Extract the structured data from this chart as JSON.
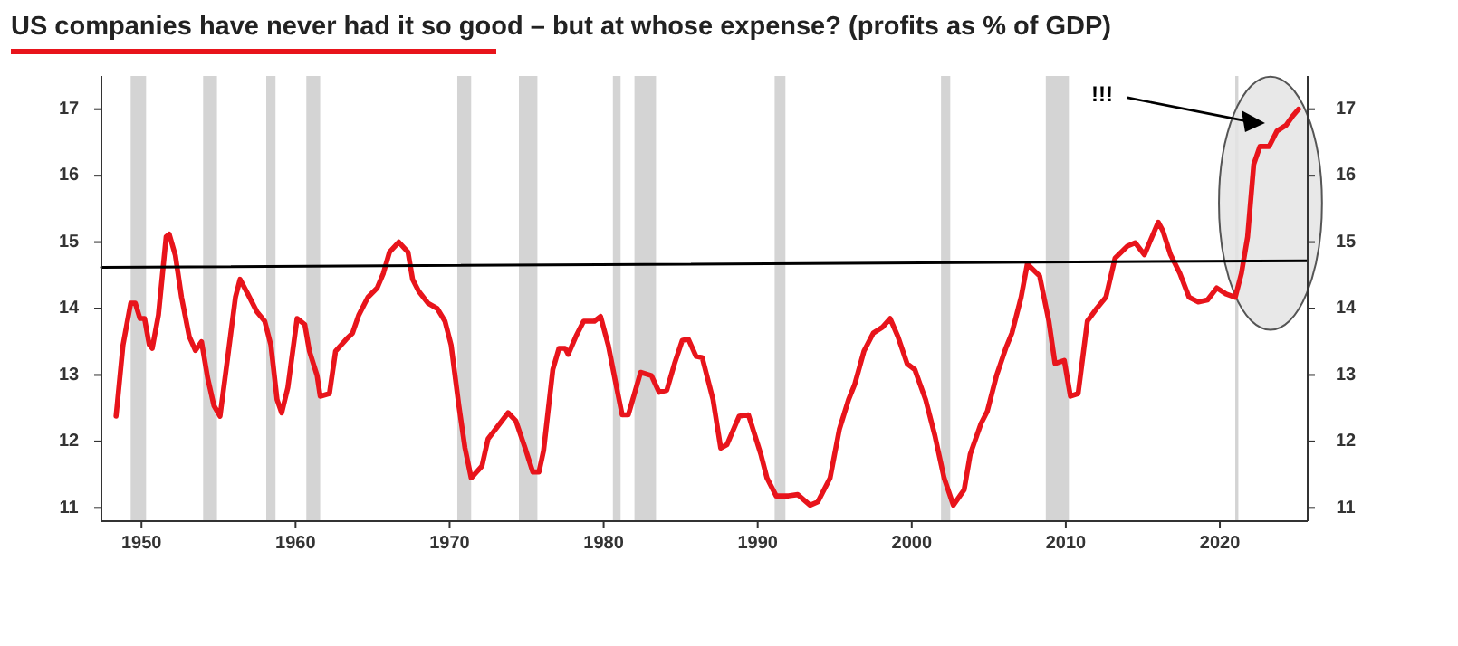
{
  "chart_data": {
    "type": "line",
    "title": "US companies have never had it so good – but at whose expense? (profits as % of GDP)",
    "xlim": [
      1947.4,
      2025.7
    ],
    "xticks": [
      1950,
      1960,
      1970,
      1980,
      1990,
      2000,
      2010,
      2020
    ],
    "ylim": [
      10.8,
      17.5
    ],
    "yticks": [
      11,
      12,
      13,
      14,
      15,
      16,
      17
    ],
    "y2lim": [
      10.8,
      17.5
    ],
    "y2ticks": [
      11,
      12,
      13,
      14,
      15,
      16,
      17
    ],
    "grid": false,
    "bands": [
      {
        "axis": "x",
        "from": 1949.3,
        "to": 1950.3,
        "color": "#d4d4d4"
      },
      {
        "axis": "x",
        "from": 1954.0,
        "to": 1954.9,
        "color": "#d4d4d4"
      },
      {
        "axis": "x",
        "from": 1958.1,
        "to": 1958.7,
        "color": "#d4d4d4"
      },
      {
        "axis": "x",
        "from": 1960.7,
        "to": 1961.6,
        "color": "#d4d4d4"
      },
      {
        "axis": "x",
        "from": 1970.5,
        "to": 1971.4,
        "color": "#d4d4d4"
      },
      {
        "axis": "x",
        "from": 1974.5,
        "to": 1975.7,
        "color": "#d4d4d4"
      },
      {
        "axis": "x",
        "from": 1980.6,
        "to": 1981.1,
        "color": "#d4d4d4"
      },
      {
        "axis": "x",
        "from": 1982.0,
        "to": 1983.4,
        "color": "#d4d4d4"
      },
      {
        "axis": "x",
        "from": 1991.1,
        "to": 1991.8,
        "color": "#d4d4d4"
      },
      {
        "axis": "x",
        "from": 2001.9,
        "to": 2002.5,
        "color": "#d4d4d4"
      },
      {
        "axis": "x",
        "from": 2008.7,
        "to": 2010.2,
        "color": "#d4d4d4"
      },
      {
        "axis": "x",
        "from": 2021.0,
        "to": 2021.2,
        "color": "#d4d4d4"
      }
    ],
    "annotations": [
      "!!!"
    ],
    "series": [
      {
        "color": "#e8141b",
        "x": [
          1948.35,
          1948.8,
          1949.3,
          1949.6,
          1949.9,
          1950.2,
          1950.5,
          1950.7,
          1951.1,
          1951.6,
          1951.8,
          1952.2,
          1952.6,
          1953.1,
          1953.5,
          1953.9,
          1954.3,
          1954.7,
          1955.1,
          1955.6,
          1956.1,
          1956.4,
          1956.9,
          1957.5,
          1958.0,
          1958.4,
          1958.8,
          1959.1,
          1959.5,
          1960.1,
          1960.6,
          1960.9,
          1961.4,
          1961.6,
          1962.2,
          1962.6,
          1963.3,
          1963.7,
          1964.1,
          1964.7,
          1965.3,
          1965.7,
          1966.1,
          1966.7,
          1967.3,
          1967.6,
          1968.0,
          1968.6,
          1969.2,
          1969.7,
          1970.1,
          1970.6,
          1971.0,
          1971.4,
          1972.1,
          1972.5,
          1973.1,
          1973.8,
          1974.3,
          1974.9,
          1975.4,
          1975.8,
          1976.1,
          1976.7,
          1977.1,
          1977.5,
          1977.7,
          1978.2,
          1978.7,
          1979.4,
          1979.8,
          1980.3,
          1980.8,
          1981.2,
          1981.6,
          1982.4,
          1983.1,
          1983.6,
          1984.1,
          1984.6,
          1985.1,
          1985.5,
          1986.0,
          1986.4,
          1987.1,
          1987.6,
          1988.0,
          1988.8,
          1989.4,
          1990.2,
          1990.6,
          1991.2,
          1992.0,
          1992.6,
          1993.4,
          1993.9,
          1994.7,
          1995.3,
          1995.9,
          1996.3,
          1996.9,
          1997.5,
          1998.1,
          1998.6,
          1999.1,
          1999.7,
          2000.2,
          2000.9,
          2001.5,
          2002.1,
          2002.7,
          2003.4,
          2003.8,
          2004.5,
          2004.9,
          2005.5,
          2006.1,
          2006.5,
          2007.1,
          2007.5,
          2008.3,
          2008.9,
          2009.3,
          2009.9,
          2010.3,
          2010.8,
          2011.4,
          2012.0,
          2012.6,
          2013.2,
          2014.0,
          2014.5,
          2015.1,
          2016.0,
          2016.3,
          2016.8,
          2017.4,
          2018.0,
          2018.6,
          2019.2,
          2019.8,
          2020.4,
          2021.0,
          2021.4,
          2021.8,
          2022.2,
          2022.6,
          2023.2,
          2023.7,
          2024.3,
          2024.7,
          2025.1
        ],
        "values": [
          12.38,
          13.45,
          14.08,
          14.08,
          13.85,
          13.85,
          13.46,
          13.4,
          13.9,
          15.08,
          15.12,
          14.8,
          14.17,
          13.58,
          13.37,
          13.5,
          12.95,
          12.54,
          12.38,
          13.27,
          14.17,
          14.44,
          14.22,
          13.95,
          13.81,
          13.45,
          12.63,
          12.43,
          12.81,
          13.85,
          13.76,
          13.36,
          12.99,
          12.68,
          12.72,
          13.36,
          13.54,
          13.63,
          13.9,
          14.17,
          14.31,
          14.53,
          14.85,
          15.0,
          14.85,
          14.44,
          14.26,
          14.08,
          14.0,
          13.81,
          13.45,
          12.54,
          11.9,
          11.45,
          11.63,
          12.04,
          12.22,
          12.43,
          12.31,
          11.9,
          11.54,
          11.54,
          11.86,
          13.08,
          13.4,
          13.4,
          13.31,
          13.58,
          13.81,
          13.81,
          13.88,
          13.45,
          12.86,
          12.4,
          12.4,
          13.04,
          12.99,
          12.74,
          12.77,
          13.17,
          13.52,
          13.54,
          13.28,
          13.26,
          12.63,
          11.9,
          11.95,
          12.38,
          12.4,
          11.81,
          11.45,
          11.18,
          11.18,
          11.2,
          11.04,
          11.09,
          11.45,
          12.18,
          12.63,
          12.86,
          13.36,
          13.63,
          13.72,
          13.85,
          13.58,
          13.17,
          13.08,
          12.63,
          12.09,
          11.45,
          11.04,
          11.27,
          11.81,
          12.27,
          12.45,
          12.99,
          13.4,
          13.63,
          14.17,
          14.67,
          14.49,
          13.81,
          13.17,
          13.22,
          12.68,
          12.72,
          13.81,
          14.0,
          14.17,
          14.76,
          14.94,
          14.99,
          14.81,
          15.3,
          15.17,
          14.81,
          14.53,
          14.17,
          14.1,
          14.13,
          14.31,
          14.22,
          14.17,
          14.53,
          15.08,
          16.17,
          16.44,
          16.44,
          16.67,
          16.76,
          16.89,
          17.0
        ]
      },
      {
        "type": "line",
        "color": "#000000",
        "x": [
          1947.4,
          2025.7
        ],
        "values": [
          14.62,
          14.72
        ]
      }
    ]
  }
}
